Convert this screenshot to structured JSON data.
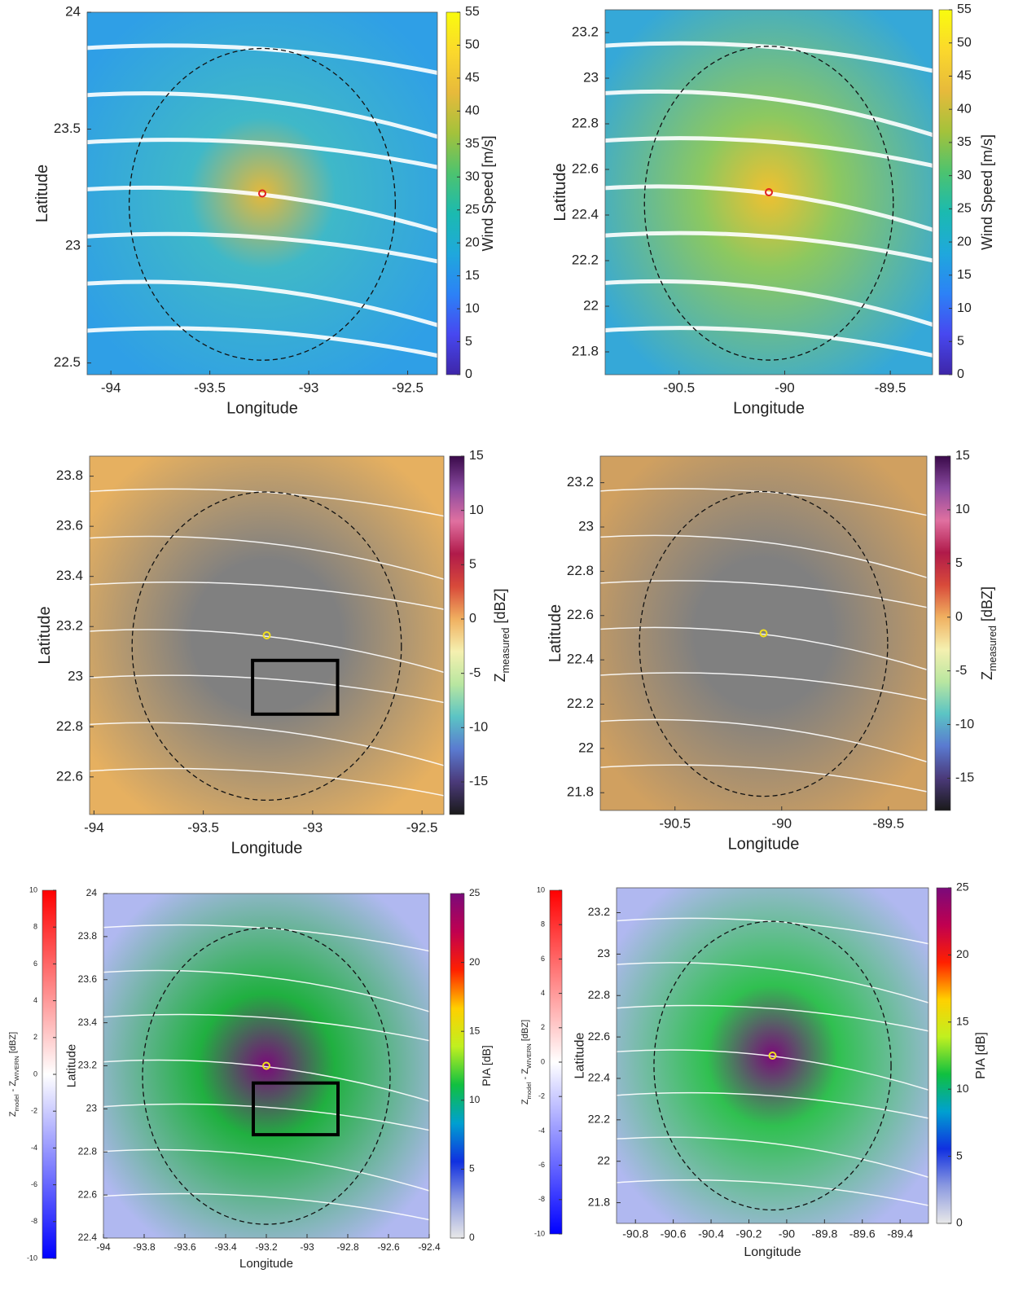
{
  "chart_data": [
    {
      "type": "heatmap",
      "x_label": "Longitude",
      "y_label": "Latitude",
      "xlim": [
        -94.12,
        -92.35
      ],
      "xticks": [
        -94,
        -93.5,
        -93,
        -92.5
      ],
      "ylim": [
        22.45,
        24.0
      ],
      "yticks": [
        22.5,
        23,
        23.5,
        24
      ],
      "colorbars": [
        {
          "lim": [
            0,
            55
          ],
          "ticks": [
            0,
            5,
            10,
            15,
            20,
            25,
            30,
            35,
            40,
            45,
            50,
            55
          ],
          "label_parts": [
            {
              "text": "Wind Speed [m/s]"
            }
          ],
          "colors": [
            "#3e26a8",
            "#4748f0",
            "#2c82f6",
            "#1fa8dc",
            "#1bbab0",
            "#4dc36f",
            "#a4c23b",
            "#e7ba3b",
            "#fbd82c",
            "#f9fb0e"
          ]
        }
      ]
    },
    {
      "type": "heatmap",
      "x_label": "Longitude",
      "y_label": "Latitude",
      "xlim": [
        -90.85,
        -89.3
      ],
      "xticks": [
        -90.5,
        -90,
        -89.5
      ],
      "ylim": [
        21.7,
        23.3
      ],
      "yticks": [
        21.8,
        22,
        22.2,
        22.4,
        22.6,
        22.8,
        23,
        23.2
      ],
      "colorbars": [
        {
          "lim": [
            0,
            55
          ],
          "ticks": [
            0,
            5,
            10,
            15,
            20,
            25,
            30,
            35,
            40,
            45,
            50,
            55
          ],
          "label_parts": [
            {
              "text": "Wind Speed [m/s]"
            }
          ],
          "colors": [
            "#3e26a8",
            "#4748f0",
            "#2c82f6",
            "#1fa8dc",
            "#1bbab0",
            "#4dc36f",
            "#a4c23b",
            "#e7ba3b",
            "#fbd82c",
            "#f9fb0e"
          ]
        }
      ]
    },
    {
      "type": "heatmap",
      "x_label": "Longitude",
      "y_label": "Latitude",
      "xlim": [
        -94.02,
        -92.4
      ],
      "xticks": [
        -94,
        -93.5,
        -93,
        -92.5
      ],
      "ylim": [
        22.45,
        23.88
      ],
      "yticks": [
        22.6,
        22.8,
        23,
        23.2,
        23.4,
        23.6,
        23.8
      ],
      "colorbars": [
        {
          "lim": [
            -18,
            15
          ],
          "ticks": [
            -15,
            -10,
            -5,
            0,
            5,
            10,
            15
          ],
          "label_parts": [
            {
              "text": "Z"
            },
            {
              "text": "measured",
              "sub": true
            },
            {
              "text": " [dBZ]"
            }
          ],
          "colors": [
            "#1a1a1a",
            "#4b3a7a",
            "#5a7ad0",
            "#5bc4c4",
            "#b9e6a0",
            "#f5f0b0",
            "#f0b060",
            "#d84a3a",
            "#b01a4a",
            "#e070a0",
            "#8a4aa0",
            "#3a0a4a"
          ]
        }
      ]
    },
    {
      "type": "heatmap",
      "x_label": "Longitude",
      "y_label": "Latitude",
      "xlim": [
        -90.85,
        -89.32
      ],
      "xticks": [
        -90.5,
        -90,
        -89.5
      ],
      "ylim": [
        21.72,
        23.32
      ],
      "yticks": [
        21.8,
        22,
        22.2,
        22.4,
        22.6,
        22.8,
        23,
        23.2
      ],
      "colorbars": [
        {
          "lim": [
            -18,
            15
          ],
          "ticks": [
            -15,
            -10,
            -5,
            0,
            5,
            10,
            15
          ],
          "label_parts": [
            {
              "text": "Z"
            },
            {
              "text": "measured",
              "sub": true
            },
            {
              "text": " [dBZ]"
            }
          ],
          "colors": [
            "#1a1a1a",
            "#4b3a7a",
            "#5a7ad0",
            "#5bc4c4",
            "#b9e6a0",
            "#f5f0b0",
            "#f0b060",
            "#d84a3a",
            "#b01a4a",
            "#e070a0",
            "#8a4aa0",
            "#3a0a4a"
          ]
        }
      ]
    },
    {
      "type": "heatmap",
      "x_label": "Longitude",
      "y_label": "Latitude",
      "xlim": [
        -94,
        -92.4
      ],
      "xticks": [
        -94,
        -93.8,
        -93.6,
        -93.4,
        -93.2,
        -93,
        -92.8,
        -92.6,
        -92.4
      ],
      "ylim": [
        22.4,
        24
      ],
      "yticks": [
        22.4,
        22.6,
        22.8,
        23,
        23.2,
        23.4,
        23.6,
        23.8,
        24
      ],
      "colorbars": [
        {
          "lim": [
            -10,
            10
          ],
          "ticks": [
            -10,
            -8,
            -6,
            -4,
            -2,
            0,
            2,
            4,
            6,
            8,
            10
          ],
          "label_parts": [
            {
              "text": "Z"
            },
            {
              "text": "model",
              "sub": true
            },
            {
              "text": " - Z"
            },
            {
              "text": "WIVERN",
              "sub": true
            },
            {
              "text": " [dBZ]"
            }
          ],
          "colors": [
            "#0000ff",
            "#8080ff",
            "#ffffff",
            "#ff8080",
            "#ff0000"
          ]
        },
        {
          "lim": [
            0,
            25
          ],
          "ticks": [
            0,
            5,
            10,
            15,
            20,
            25
          ],
          "label_parts": [
            {
              "text": "PIA [dB]"
            }
          ],
          "colors": [
            "#e8e8e8",
            "#8c9ae0",
            "#1030e0",
            "#00a0d0",
            "#10c040",
            "#c0f020",
            "#ffd000",
            "#ff2000",
            "#c00050",
            "#7a0a7a"
          ]
        }
      ]
    },
    {
      "type": "heatmap",
      "x_label": "Longitude",
      "y_label": "Latitude",
      "xlim": [
        -90.9,
        -89.25
      ],
      "xticks": [
        -90.8,
        -90.6,
        -90.4,
        -90.2,
        -90,
        -89.8,
        -89.6,
        -89.4
      ],
      "ylim": [
        21.7,
        23.32
      ],
      "yticks": [
        21.8,
        22,
        22.2,
        22.4,
        22.6,
        22.8,
        23,
        23.2
      ],
      "colorbars": [
        {
          "lim": [
            -10,
            10
          ],
          "ticks": [
            -10,
            -8,
            -6,
            -4,
            -2,
            0,
            2,
            4,
            6,
            8,
            10
          ],
          "label_parts": [
            {
              "text": "Z"
            },
            {
              "text": "model",
              "sub": true
            },
            {
              "text": " - Z"
            },
            {
              "text": "WIVERN",
              "sub": true
            },
            {
              "text": " [dBZ]"
            }
          ],
          "colors": [
            "#0000ff",
            "#8080ff",
            "#ffffff",
            "#ff8080",
            "#ff0000"
          ]
        },
        {
          "lim": [
            0,
            25
          ],
          "ticks": [
            0,
            5,
            10,
            15,
            20,
            25
          ],
          "label_parts": [
            {
              "text": "PIA [dB]"
            }
          ],
          "colors": [
            "#e8e8e8",
            "#8c9ae0",
            "#1030e0",
            "#00a0d0",
            "#10c040",
            "#c0f020",
            "#ffd000",
            "#ff2000",
            "#c00050",
            "#7a0a7a"
          ]
        }
      ]
    }
  ]
}
